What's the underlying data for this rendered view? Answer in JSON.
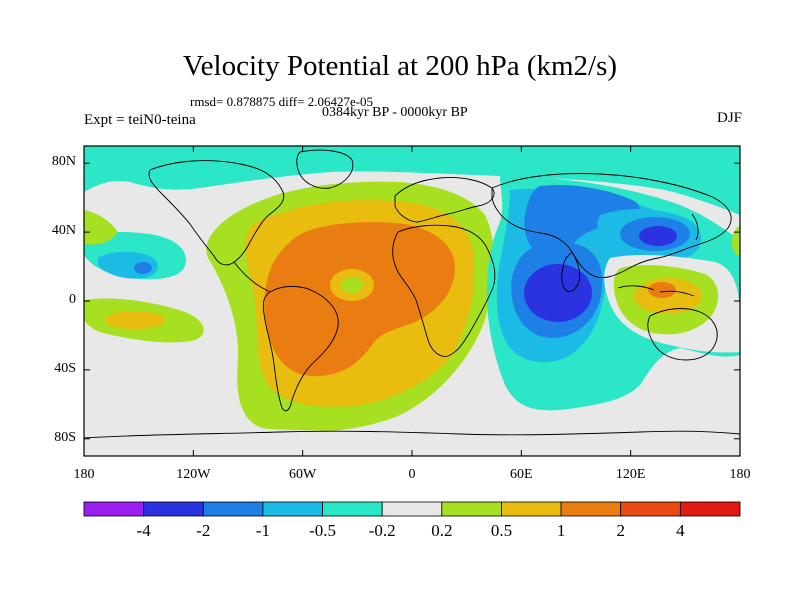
{
  "title": "Velocity Potential at 200 hPa (km2/s)",
  "stats": "rmsd= 0.878875 diff= 2.06427e-05",
  "experiment": "Expt = teiN0-teina",
  "period": "0384kyr BP - 0000kyr BP",
  "season": "DJF",
  "lat_ticks": [
    {
      "label": "80N",
      "value": 80
    },
    {
      "label": "40N",
      "value": 40
    },
    {
      "label": "0",
      "value": 0
    },
    {
      "label": "40S",
      "value": -40
    },
    {
      "label": "80S",
      "value": -80
    }
  ],
  "lon_ticks": [
    {
      "label": "180",
      "value": -180
    },
    {
      "label": "120W",
      "value": -120
    },
    {
      "label": "60W",
      "value": -60
    },
    {
      "label": "0",
      "value": 0
    },
    {
      "label": "60E",
      "value": 60
    },
    {
      "label": "120E",
      "value": 120
    },
    {
      "label": "180",
      "value": 180
    }
  ],
  "colorbar": {
    "colors": [
      "#9a1ff0",
      "#2a33df",
      "#1e80e6",
      "#1cbbe6",
      "#2ce6c8",
      "#e8e8e8",
      "#a6e020",
      "#e8bd10",
      "#ea7d12",
      "#e84a12",
      "#e11a14"
    ],
    "labels": [
      "-4",
      "-2",
      "-1",
      "-0.5",
      "-0.2",
      "0.2",
      "0.5",
      "1",
      "2",
      "4"
    ]
  },
  "chart_data": {
    "type": "heatmap",
    "title": "Velocity Potential at 200 hPa (km2/s)",
    "variable": "200 hPa velocity potential anomaly",
    "units": "km2/s",
    "experiment": "teiN0-teina",
    "period": "0384kyr BP - 0000kyr BP",
    "season": "DJF",
    "rmsd": 0.878875,
    "diff": 2.06427e-05,
    "x_range": [
      -180,
      180
    ],
    "y_range": [
      -90,
      90
    ],
    "contour_levels": [
      -4,
      -2,
      -1,
      -0.5,
      -0.2,
      0.2,
      0.5,
      1,
      2,
      4
    ],
    "features": [
      {
        "name": "Atlantic / South America positive anomaly",
        "approx_center": [
          -45,
          0
        ],
        "approx_value": 2
      },
      {
        "name": "Indian Ocean negative anomaly",
        "approx_center": [
          75,
          -5
        ],
        "approx_value": -2.5
      },
      {
        "name": "East Asia negative anomaly",
        "approx_center": [
          130,
          35
        ],
        "approx_value": -2
      },
      {
        "name": "Maritime Continent positive anomaly",
        "approx_center": [
          140,
          -5
        ],
        "approx_value": 1
      },
      {
        "name": "Southern Ocean near-zero band",
        "approx_center": [
          0,
          -65
        ],
        "approx_value": 0
      }
    ]
  }
}
